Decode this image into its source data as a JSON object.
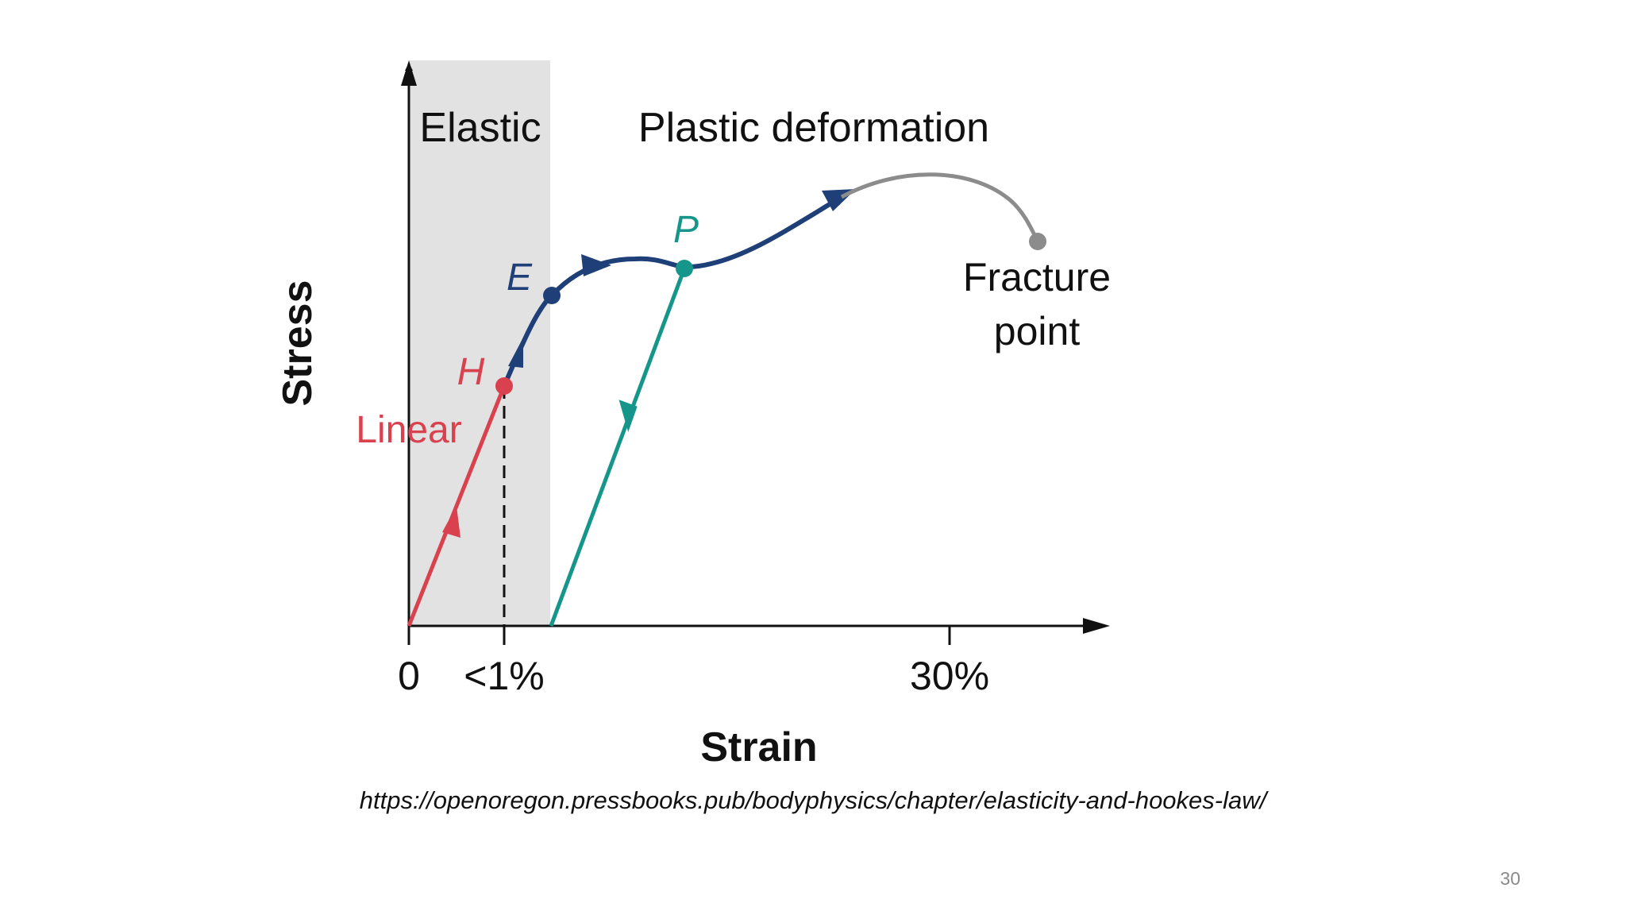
{
  "diagram": {
    "regions": {
      "elastic_label": "Elastic",
      "plastic_label": "Plastic deformation"
    },
    "axes": {
      "y_label": "Stress",
      "x_label": "Strain",
      "ticks": [
        "0",
        "<1%",
        "30%"
      ]
    },
    "points": {
      "H": "H",
      "E": "E",
      "P": "P",
      "fracture_line1": "Fracture",
      "fracture_line2": "point"
    },
    "segment_labels": {
      "linear": "Linear"
    },
    "colors": {
      "linear": "#d9414f",
      "plastic_curve": "#1e3f78",
      "unloading": "#16968a",
      "fracture": "#8c8c8c",
      "elastic_region": "#e2e2e2",
      "axis": "#111111"
    }
  },
  "footer": {
    "source_url": "https://openoregon.pressbooks.pub/bodyphysics/chapter/elasticity-and-hookes-law/",
    "page_number": "30"
  }
}
